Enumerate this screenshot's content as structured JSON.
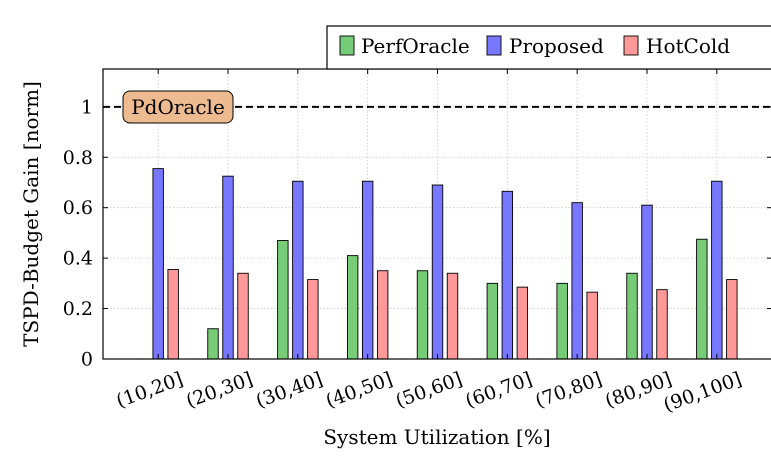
{
  "chart_data": {
    "type": "bar",
    "xlabel": "System Utilization [%]",
    "ylabel": "TSPD-Budget Gain [norm]",
    "ylim": [
      0,
      1.15
    ],
    "yticks": [
      "0",
      "0.2",
      "0.4",
      "0.6",
      "0.8",
      "1"
    ],
    "categories": [
      "(10,20]",
      "(20,30]",
      "(30,40]",
      "(40,50]",
      "(50,60]",
      "(60,70]",
      "(70,80]",
      "(80,90]",
      "(90,100]"
    ],
    "series": [
      {
        "name": "PerfOracle",
        "color": "#77cc77",
        "values": [
          0,
          0.12,
          0.47,
          0.41,
          0.35,
          0.3,
          0.3,
          0.34,
          0.475
        ]
      },
      {
        "name": "Proposed",
        "color": "#7777ff",
        "values": [
          0.755,
          0.725,
          0.705,
          0.705,
          0.69,
          0.665,
          0.62,
          0.61,
          0.705
        ]
      },
      {
        "name": "HotCold",
        "color": "#ff9999",
        "values": [
          0.355,
          0.34,
          0.315,
          0.35,
          0.34,
          0.285,
          0.265,
          0.275,
          0.315
        ]
      }
    ],
    "reference_line": {
      "label": "PdOracle",
      "value": 1,
      "color": "#000000"
    },
    "annotation_bg": "#eebb91",
    "grid": true,
    "legend_position": "top-right"
  }
}
